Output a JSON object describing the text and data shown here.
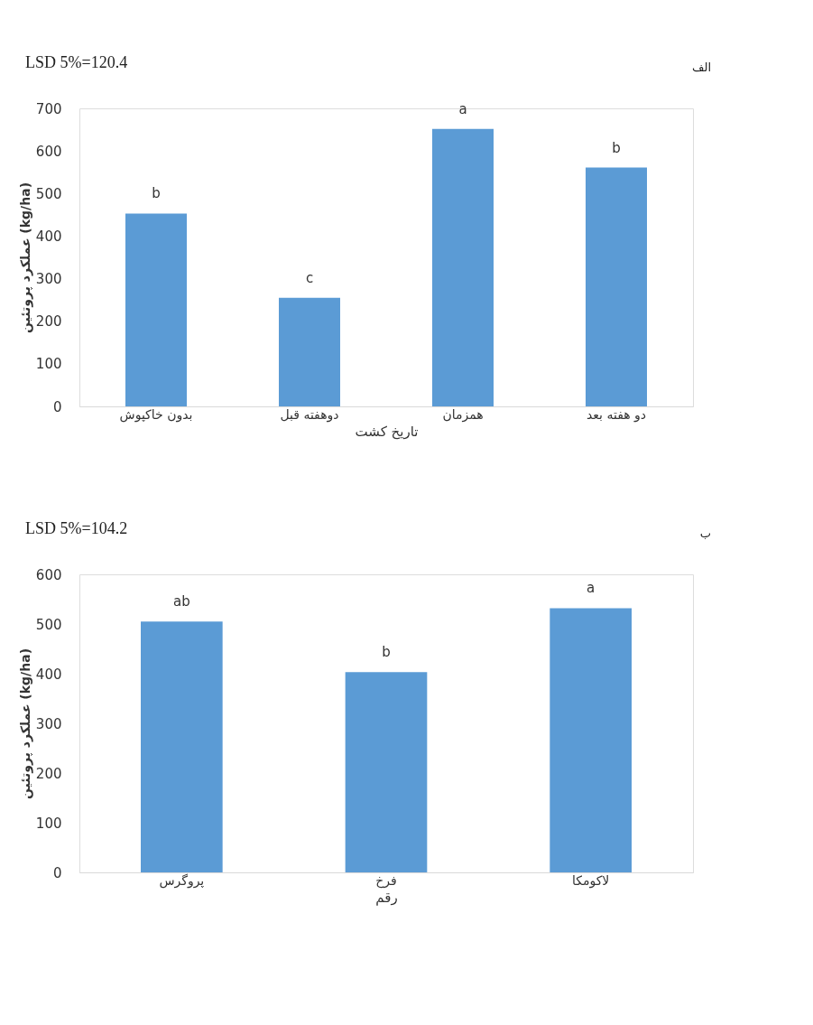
{
  "chart_data": [
    {
      "type": "bar",
      "categories": [
        "بدون خاکپوش",
        "دوهفته قبل",
        "همزمان",
        "دو هفته بعد"
      ],
      "values": [
        453,
        255,
        652,
        561
      ],
      "color": "#5b9bd5",
      "ylim": [
        0,
        700
      ],
      "yticks": [
        0,
        100,
        200,
        300,
        400,
        500,
        600,
        700
      ],
      "xlabel": "تاریخ کشت",
      "ylabel": "عملکرد پروتئین (kg/ha)",
      "grid": false,
      "annotations": [
        "LSD 5%=120.4",
        "الف",
        {
          "text": "b",
          "x": "بدون خاکپوش",
          "y": 453
        },
        {
          "text": "c",
          "x": "دوهفته قبل",
          "y": 255
        },
        {
          "text": "a",
          "x": "همزمان",
          "y": 652
        },
        {
          "text": "b",
          "x": "دو هفته بعد",
          "y": 561
        }
      ]
    },
    {
      "type": "bar",
      "categories": [
        "پروگرس",
        "فرخ",
        "لاکومکا"
      ],
      "values": [
        505,
        403,
        532
      ],
      "color": "#5b9bd5",
      "ylim": [
        0,
        600
      ],
      "yticks": [
        0,
        100,
        200,
        300,
        400,
        500,
        600
      ],
      "xlabel": "رقم",
      "ylabel": "عملکرد پروتئین (kg/ha)",
      "grid": false,
      "annotations": [
        "LSD 5%=104.2",
        "ب",
        {
          "text": "ab",
          "x": "پروگرس",
          "y": 505
        },
        {
          "text": "b",
          "x": "فرخ",
          "y": 403
        },
        {
          "text": "a",
          "x": "لاکومکا",
          "y": 532
        }
      ]
    }
  ]
}
